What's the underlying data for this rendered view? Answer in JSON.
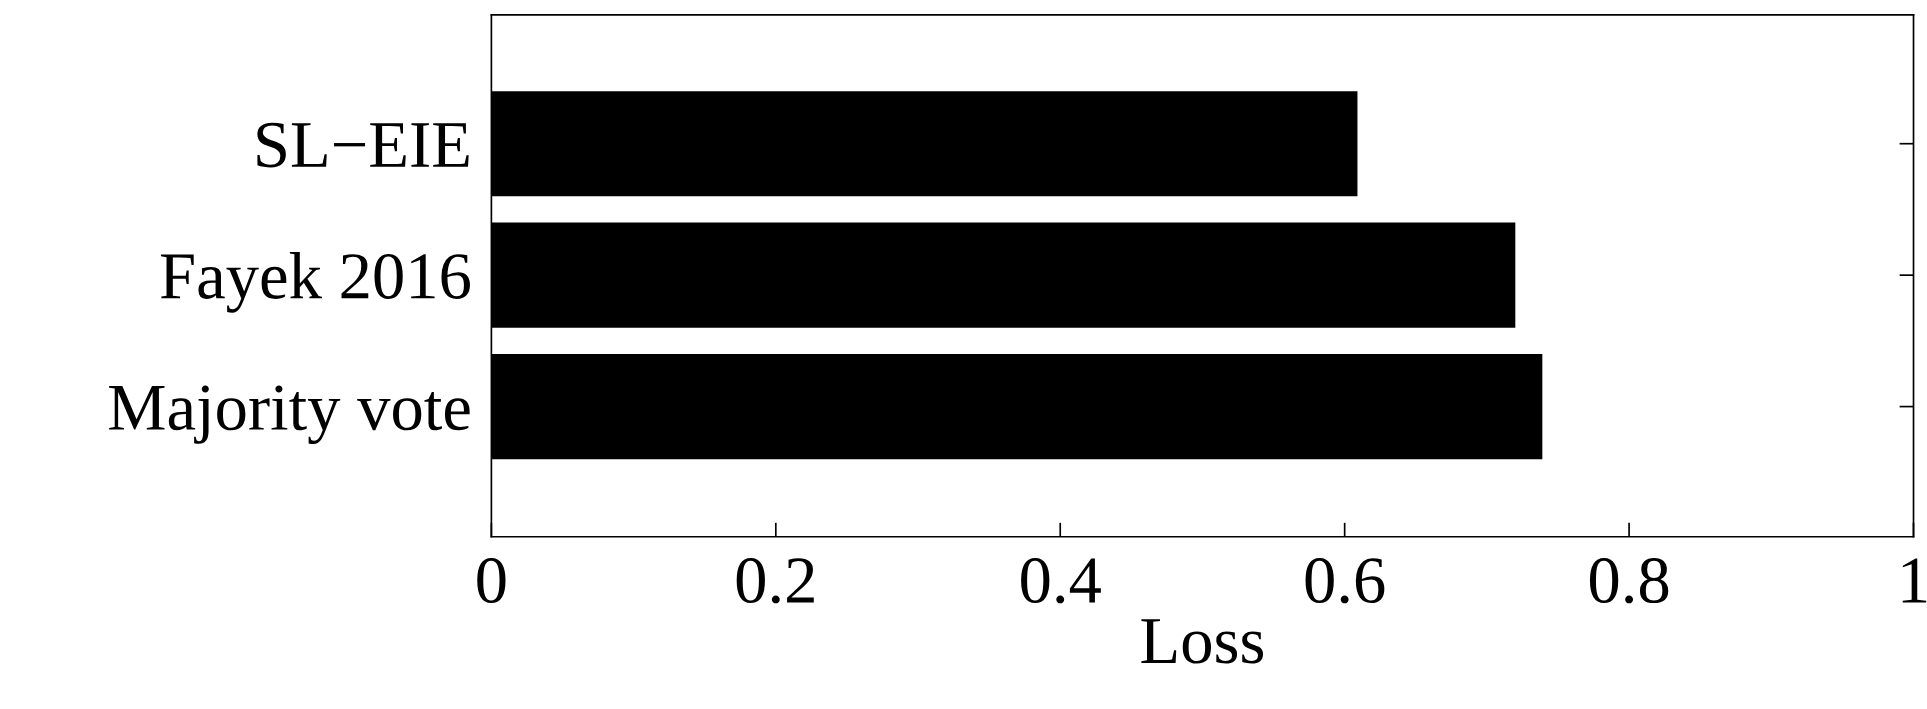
{
  "chart_data": {
    "type": "bar",
    "orientation": "horizontal",
    "xlabel": "Loss",
    "categories": [
      "SL−EIE",
      "Fayek 2016",
      "Majority vote"
    ],
    "values": [
      0.609,
      0.72,
      0.739
    ],
    "color": "#000000",
    "xlim": [
      0,
      1
    ],
    "xticks": [
      0,
      0.2,
      0.4,
      0.6,
      0.8,
      1
    ],
    "grid": false,
    "legend": false
  }
}
